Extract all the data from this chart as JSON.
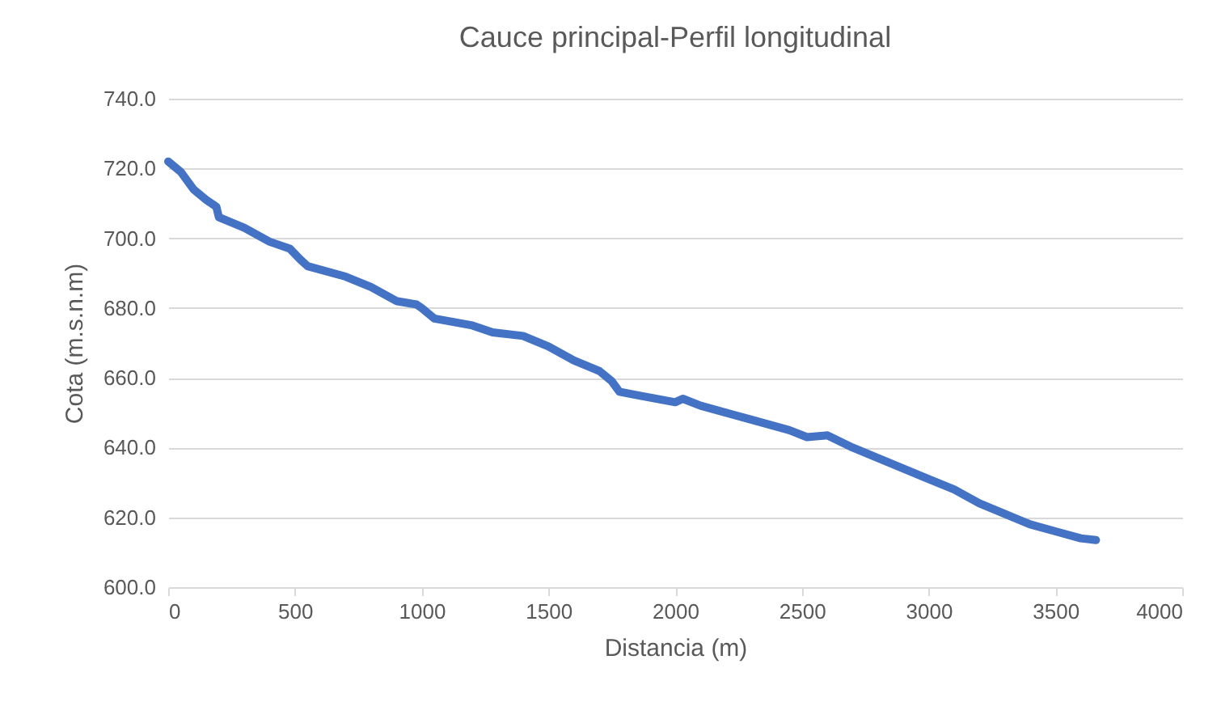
{
  "chart_data": {
    "type": "line",
    "title": "Cauce principal-Perfil longitudinal",
    "xlabel": "Distancia (m)",
    "ylabel": "Cota (m.s.n.m)",
    "series": [
      {
        "color": "#4472c4",
        "x": [
          0,
          50,
          100,
          150,
          190,
          200,
          300,
          400,
          480,
          520,
          550,
          700,
          800,
          900,
          980,
          1000,
          1050,
          1200,
          1280,
          1400,
          1500,
          1600,
          1700,
          1750,
          1780,
          1850,
          2000,
          2030,
          2100,
          2300,
          2450,
          2520,
          2600,
          2700,
          2800,
          2900,
          3000,
          3100,
          3200,
          3300,
          3400,
          3500,
          3600,
          3660
        ],
        "values": [
          722,
          719,
          714,
          711,
          709,
          706,
          703,
          699,
          697,
          694,
          692,
          689,
          686,
          682,
          681,
          680,
          677,
          675,
          673,
          672,
          669,
          665,
          662,
          659,
          656,
          655,
          653,
          654,
          652,
          648,
          645,
          643,
          643.5,
          640,
          637,
          634,
          631,
          628,
          624,
          621,
          618,
          616,
          614,
          613.5
        ]
      }
    ],
    "xlim": [
      0,
      4000
    ],
    "xticks": [
      0,
      500,
      1000,
      1500,
      2000,
      2500,
      3000,
      3500,
      4000
    ],
    "ylim": [
      600,
      740
    ],
    "yticks": [
      {
        "value": 600,
        "label": "600.0"
      },
      {
        "value": 620,
        "label": "620.0"
      },
      {
        "value": 640,
        "label": "640.0"
      },
      {
        "value": 660,
        "label": "660.0"
      },
      {
        "value": 680,
        "label": "680.0"
      },
      {
        "value": 700,
        "label": "700.0"
      },
      {
        "value": 720,
        "label": "720.0"
      },
      {
        "value": 740,
        "label": "740.0"
      }
    ],
    "grid": "y"
  }
}
